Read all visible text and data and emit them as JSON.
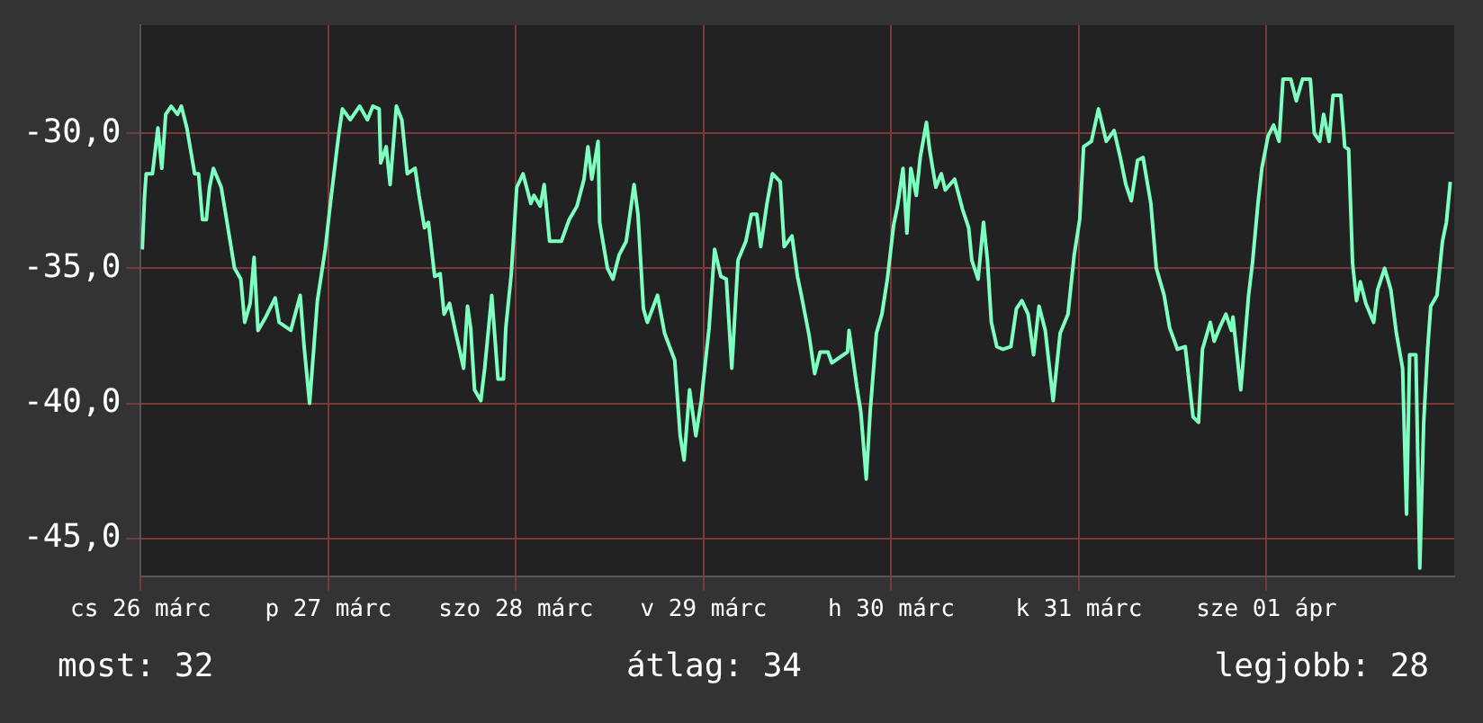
{
  "chart_data": {
    "type": "line",
    "color": "#7dffbf",
    "marker": "none",
    "line_style": "solid",
    "grid": true,
    "xlim": [
      "--03-26T00:00",
      "--04-02T00:00"
    ],
    "xticks": [
      {
        "value": "--03-26",
        "label": "cs 26 márc"
      },
      {
        "value": "--03-27",
        "label": "p 27 márc"
      },
      {
        "value": "--03-28",
        "label": "szo 28 márc"
      },
      {
        "value": "--03-29",
        "label": "v 29 márc"
      },
      {
        "value": "--03-30",
        "label": "h 30 márc"
      },
      {
        "value": "--03-31",
        "label": "k 31 márc"
      },
      {
        "value": "--04-01",
        "label": "sze 01 ápr"
      }
    ],
    "ylim": [
      -46.4,
      -26
    ],
    "yticks": [
      {
        "value": -30,
        "label": "-30,0"
      },
      {
        "value": -35,
        "label": "-35,0"
      },
      {
        "value": -40,
        "label": "-40,0"
      },
      {
        "value": -45,
        "label": "-45,0"
      }
    ],
    "annotations": [
      "most: 32",
      "átlag: 34",
      "legjobb: 28"
    ],
    "x": [
      "--03-26T00:12",
      "--03-26T00:30",
      "--03-26T00:42",
      "--03-26T01:30",
      "--03-26T02:12",
      "--03-26T02:42",
      "--03-26T03:12",
      "--03-26T03:54",
      "--03-26T04:42",
      "--03-26T05:12",
      "--03-26T05:54",
      "--03-26T06:54",
      "--03-26T07:24",
      "--03-26T07:54",
      "--03-26T08:24",
      "--03-26T08:48",
      "--03-26T09:18",
      "--03-26T10:18",
      "--03-26T11:06",
      "--03-26T12:00",
      "--03-26T12:48",
      "--03-26T13:18",
      "--03-26T14:00",
      "--03-26T14:30",
      "--03-26T15:00",
      "--03-26T16:00",
      "--03-26T17:12",
      "--03-26T17:42",
      "--03-26T19:12",
      "--03-26T20:24",
      "--03-26T20:54",
      "--03-26T21:36",
      "--03-26T22:36",
      "--03-26T23:36",
      "--03-27T00:18",
      "--03-27T01:18",
      "--03-27T01:48",
      "--03-27T02:48",
      "--03-27T04:00",
      "--03-27T05:00",
      "--03-27T05:42",
      "--03-27T06:30",
      "--03-27T06:42",
      "--03-27T07:24",
      "--03-27T07:54",
      "--03-27T08:42",
      "--03-27T09:24",
      "--03-27T10:06",
      "--03-27T11:06",
      "--03-27T11:36",
      "--03-27T12:18",
      "--03-27T12:48",
      "--03-27T13:36",
      "--03-27T14:18",
      "--03-27T14:48",
      "--03-27T15:30",
      "--03-27T16:18",
      "--03-27T17:18",
      "--03-27T17:48",
      "--03-27T18:12",
      "--03-27T18:42",
      "--03-27T19:30",
      "--03-27T20:00",
      "--03-27T20:54",
      "--03-27T21:42",
      "--03-27T22:24",
      "--03-27T22:42",
      "--03-27T23:24",
      "--03-28T00:06",
      "--03-28T00:54",
      "--03-28T01:54",
      "--03-28T02:18",
      "--03-28T03:06",
      "--03-28T03:36",
      "--03-28T04:18",
      "--03-28T05:48",
      "--03-28T06:48",
      "--03-28T07:48",
      "--03-28T08:42",
      "--03-28T09:12",
      "--03-28T09:42",
      "--03-28T10:30",
      "--03-28T10:42",
      "--03-28T11:42",
      "--03-28T12:24",
      "--03-28T13:12",
      "--03-28T14:06",
      "--03-28T15:06",
      "--03-28T15:36",
      "--03-28T16:18",
      "--03-28T16:48",
      "--03-28T18:06",
      "--03-28T19:00",
      "--03-28T20:18",
      "--03-28T21:00",
      "--03-28T21:30",
      "--03-28T22:12",
      "--03-28T23:00",
      "--03-28T23:42",
      "--03-29T00:42",
      "--03-29T01:24",
      "--03-29T02:12",
      "--03-29T02:54",
      "--03-29T03:36",
      "--03-29T04:24",
      "--03-29T05:24",
      "--03-29T06:06",
      "--03-29T06:48",
      "--03-29T07:18",
      "--03-29T08:06",
      "--03-29T08:48",
      "--03-29T09:48",
      "--03-29T10:18",
      "--03-29T11:18",
      "--03-29T12:00",
      "--03-29T12:30",
      "--03-29T13:30",
      "--03-29T14:12",
      "--03-29T14:54",
      "--03-29T15:54",
      "--03-29T16:24",
      "--03-29T18:24",
      "--03-29T18:36",
      "--03-29T19:36",
      "--03-29T20:06",
      "--03-29T20:48",
      "--03-29T21:18",
      "--03-29T22:06",
      "--03-29T22:48",
      "--03-29T23:30",
      "--03-30T00:18",
      "--03-30T00:48",
      "--03-30T01:30",
      "--03-30T02:00",
      "--03-30T02:30",
      "--03-30T03:12",
      "--03-30T03:42",
      "--03-30T04:30",
      "--03-30T04:54",
      "--03-30T05:42",
      "--03-30T06:24",
      "--03-30T06:54",
      "--03-30T08:06",
      "--03-30T09:06",
      "--03-30T09:54",
      "--03-30T10:18",
      "--03-30T11:06",
      "--03-30T11:48",
      "--03-30T12:18",
      "--03-30T12:48",
      "--03-30T13:30",
      "--03-30T14:18",
      "--03-30T15:18",
      "--03-30T16:00",
      "--03-30T16:42",
      "--03-30T17:30",
      "--03-30T18:12",
      "--03-30T18:54",
      "--03-30T19:42",
      "--03-30T20:42",
      "--03-30T21:36",
      "--03-30T22:36",
      "--03-30T23:24",
      "--03-31T00:06",
      "--03-31T00:36",
      "--03-31T01:36",
      "--03-31T02:30",
      "--03-31T03:30",
      "--03-31T04:30",
      "--03-31T05:18",
      "--03-31T06:00",
      "--03-31T06:42",
      "--03-31T07:30",
      "--03-31T08:12",
      "--03-31T09:12",
      "--03-31T09:54",
      "--03-31T10:54",
      "--03-31T11:36",
      "--03-31T12:36",
      "--03-31T13:36",
      "--03-31T14:36",
      "--03-31T15:18",
      "--03-31T15:48",
      "--03-31T16:48",
      "--03-31T17:18",
      "--03-31T18:00",
      "--03-31T18:48",
      "--03-31T19:30",
      "--03-31T19:42",
      "--03-31T20:42",
      "--03-31T21:42",
      "--03-31T22:12",
      "--03-31T22:54",
      "--03-31T23:24",
      "--04-01T00:12",
      "--04-01T00:54",
      "--04-01T01:36",
      "--04-01T02:06",
      "--04-01T03:06",
      "--04-01T03:48",
      "--04-01T04:36",
      "--04-01T05:36",
      "--04-01T06:06",
      "--04-01T06:48",
      "--04-01T07:18",
      "--04-01T08:00",
      "--04-01T08:30",
      "--04-01T09:30",
      "--04-01T10:00",
      "--04-01T10:30",
      "--04-01T11:00",
      "--04-01T11:30",
      "--04-01T12:00",
      "--04-01T12:42",
      "--04-01T13:42",
      "--04-01T14:12",
      "--04-01T15:06",
      "--04-01T15:54",
      "--04-01T16:36",
      "--04-01T17:24",
      "--04-01T17:54",
      "--04-01T18:18",
      "--04-01T19:06",
      "--04-01T19:36",
      "--04-01T20:06",
      "--04-01T20:36",
      "--04-01T21:00",
      "--04-01T21:48",
      "--04-01T22:30",
      "--04-01T23:00",
      "--04-01T23:30"
    ],
    "values": [
      -34.3,
      -32.3,
      -31.5,
      -31.5,
      -29.8,
      -31.3,
      -29.3,
      -29.0,
      -29.3,
      -29.0,
      -29.8,
      -31.5,
      -31.5,
      -33.2,
      -33.2,
      -32.0,
      -31.3,
      -32.0,
      -33.4,
      -35.0,
      -35.4,
      -37.0,
      -36.3,
      -34.6,
      -37.3,
      -36.8,
      -36.1,
      -37.0,
      -37.3,
      -36.0,
      -37.9,
      -40.0,
      -36.2,
      -34.3,
      -32.5,
      -30.1,
      -29.1,
      -29.5,
      -29.0,
      -29.5,
      -29.0,
      -29.1,
      -31.1,
      -30.5,
      -31.9,
      -29.0,
      -29.5,
      -31.5,
      -31.3,
      -32.3,
      -33.5,
      -33.3,
      -35.3,
      -35.2,
      -36.7,
      -36.3,
      -37.4,
      -38.7,
      -36.4,
      -37.2,
      -39.5,
      -39.9,
      -38.7,
      -36.0,
      -39.1,
      -39.1,
      -37.2,
      -35.2,
      -32.0,
      -31.5,
      -32.6,
      -32.3,
      -32.7,
      -31.9,
      -34.0,
      -34.0,
      -33.2,
      -32.7,
      -31.7,
      -30.5,
      -31.7,
      -30.3,
      -33.3,
      -35.0,
      -35.4,
      -34.5,
      -34.0,
      -31.9,
      -33.0,
      -36.5,
      -37.0,
      -36.0,
      -37.4,
      -38.4,
      -41.2,
      -42.1,
      -39.5,
      -41.2,
      -39.9,
      -37.2,
      -34.3,
      -35.3,
      -35.4,
      -38.7,
      -34.7,
      -34.0,
      -33.0,
      -33.0,
      -34.2,
      -32.6,
      -31.5,
      -31.8,
      -34.2,
      -33.8,
      -35.3,
      -36.0,
      -37.5,
      -38.9,
      -38.1,
      -38.1,
      -38.5,
      -38.1,
      -37.3,
      -39.4,
      -40.3,
      -42.8,
      -40.3,
      -37.4,
      -36.7,
      -35.4,
      -33.4,
      -32.7,
      -31.3,
      -33.7,
      -31.3,
      -32.3,
      -30.9,
      -29.6,
      -30.6,
      -32.0,
      -31.5,
      -32.1,
      -31.7,
      -32.8,
      -33.5,
      -34.7,
      -35.4,
      -33.3,
      -34.7,
      -37.0,
      -37.9,
      -38.0,
      -37.9,
      -36.5,
      -36.2,
      -36.7,
      -38.2,
      -36.4,
      -37.3,
      -39.9,
      -37.4,
      -36.7,
      -34.5,
      -33.2,
      -30.5,
      -30.3,
      -29.1,
      -30.3,
      -29.9,
      -30.9,
      -31.9,
      -32.5,
      -31.0,
      -30.9,
      -32.6,
      -35.0,
      -36.0,
      -37.2,
      -38.0,
      -37.9,
      -40.5,
      -40.7,
      -38.0,
      -37.0,
      -37.7,
      -37.2,
      -36.7,
      -37.3,
      -36.8,
      -39.5,
      -36.0,
      -34.8,
      -32.6,
      -31.3,
      -30.1,
      -29.7,
      -30.3,
      -28.0,
      -28.0,
      -28.8,
      -28.0,
      -28.0,
      -30.0,
      -30.3,
      -29.3,
      -30.3,
      -28.6,
      -28.6,
      -30.5,
      -30.6,
      -34.8,
      -36.2,
      -35.5,
      -36.3,
      -37.0,
      -35.8,
      -35.0,
      -35.8,
      -37.4,
      -38.7,
      -44.1,
      -38.2,
      -38.2,
      -46.1,
      -40.7,
      -38.0,
      -36.4,
      -36.0,
      -34.0,
      -33.3,
      -31.8
    ]
  }
}
